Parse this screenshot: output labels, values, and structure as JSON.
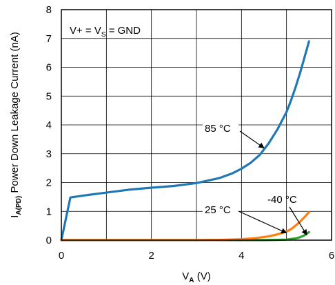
{
  "chart_data": {
    "type": "line",
    "xlabel": {
      "main": "V",
      "sub": "A",
      "unit": " (V)"
    },
    "ylabel": {
      "main": "I",
      "sub": "A(PD)",
      "rest": " Power Down Leakage Current (nA)"
    },
    "xlim": [
      0,
      6
    ],
    "ylim": [
      0,
      8
    ],
    "xticks": [
      0,
      2,
      4,
      6
    ],
    "yticks": [
      0,
      1,
      2,
      3,
      4,
      5,
      6,
      7,
      8
    ],
    "grid": true,
    "condition": {
      "pre": "V+ = V",
      "sub": "S",
      "post": " = GND"
    },
    "series": [
      {
        "name": "85 °C",
        "color": "#1f77b4",
        "x": [
          0,
          0.2,
          0.5,
          1.0,
          1.5,
          2.0,
          2.5,
          3.0,
          3.5,
          3.8,
          4.0,
          4.2,
          4.4,
          4.6,
          4.8,
          5.0,
          5.1,
          5.2,
          5.3,
          5.4,
          5.5
        ],
        "y": [
          0,
          1.48,
          1.55,
          1.65,
          1.75,
          1.82,
          1.88,
          1.98,
          2.15,
          2.32,
          2.48,
          2.68,
          2.95,
          3.35,
          3.85,
          4.45,
          4.85,
          5.3,
          5.8,
          6.35,
          6.9
        ]
      },
      {
        "name": "25 °C",
        "color": "#2ca02c",
        "x": [
          0,
          1.0,
          2.0,
          3.0,
          4.0,
          4.5,
          4.8,
          5.0,
          5.2,
          5.3,
          5.4,
          5.5
        ],
        "y": [
          0,
          0,
          0,
          0,
          0,
          0,
          0.01,
          0.02,
          0.06,
          0.1,
          0.17,
          0.28
        ]
      },
      {
        "name": "-40 °C",
        "color": "#ff7f0e",
        "x": [
          0,
          1.0,
          2.0,
          3.0,
          3.5,
          4.0,
          4.3,
          4.6,
          4.8,
          5.0,
          5.1,
          5.2,
          5.3,
          5.4,
          5.5
        ],
        "y": [
          0,
          0,
          0,
          0,
          0.01,
          0.03,
          0.07,
          0.13,
          0.2,
          0.3,
          0.38,
          0.5,
          0.64,
          0.8,
          0.97
        ]
      }
    ],
    "annotations": [
      {
        "text": "85 °C",
        "target": [
          4.5,
          3.2
        ]
      },
      {
        "text": "25 °C",
        "target": [
          5.0,
          0.25
        ]
      },
      {
        "text": "-40 °C",
        "target": [
          5.45,
          0.18
        ]
      }
    ]
  }
}
